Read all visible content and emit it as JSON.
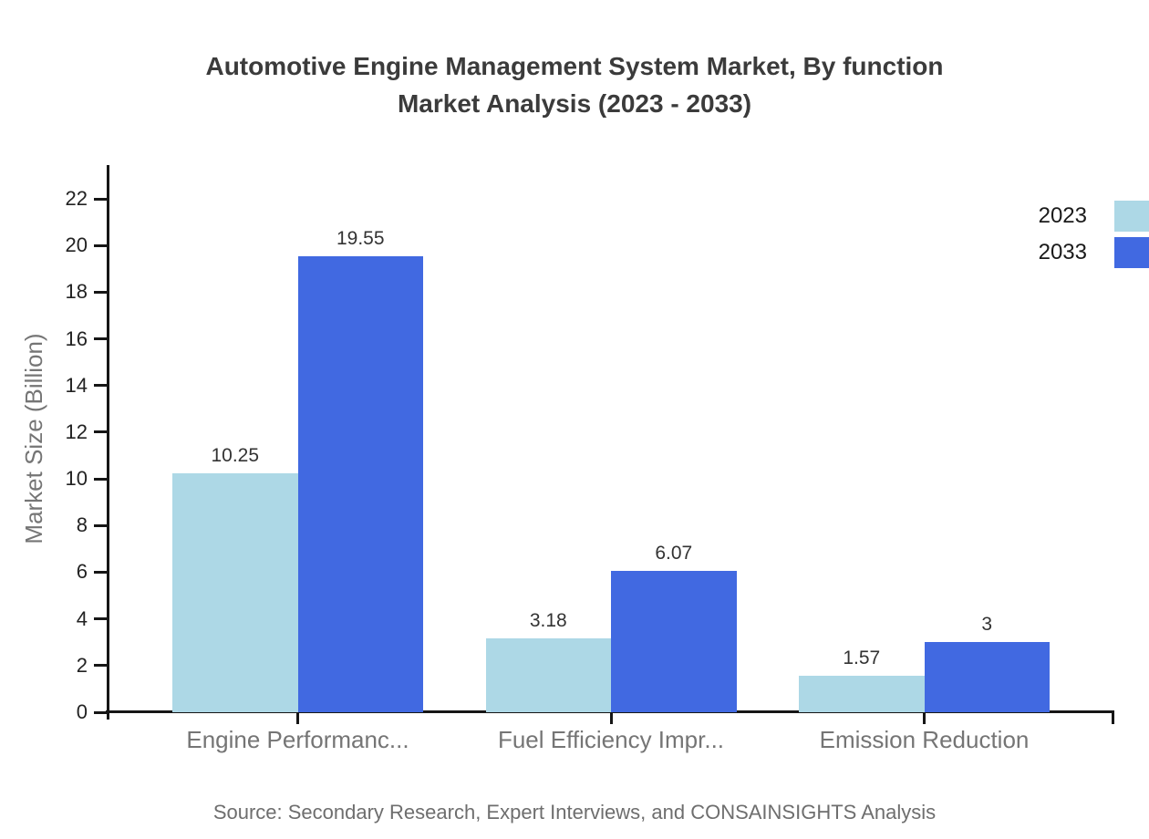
{
  "chart_data": {
    "type": "bar",
    "title_line1": "Automotive Engine Management System Market, By function",
    "title_line2": "Market Analysis (2023 - 2033)",
    "ylabel": "Market Size (Billion)",
    "ylim": [
      0,
      22
    ],
    "ytick_step": 2,
    "yticks": [
      0,
      2,
      4,
      6,
      8,
      10,
      12,
      14,
      16,
      18,
      20,
      22
    ],
    "grid": false,
    "legend_position": "top-right",
    "categories": [
      "Engine Performanc...",
      "Fuel Efficiency Impr...",
      "Emission Reduction"
    ],
    "series": [
      {
        "name": "2023",
        "color": "#add8e6",
        "values": [
          10.25,
          3.18,
          1.57
        ],
        "labels": [
          "10.25",
          "3.18",
          "1.57"
        ]
      },
      {
        "name": "2033",
        "color": "#4169e1",
        "values": [
          19.55,
          6.07,
          3
        ],
        "labels": [
          "19.55",
          "6.07",
          "3"
        ]
      }
    ],
    "source": "Source: Secondary Research, Expert Interviews, and CONSAINSIGHTS Analysis",
    "colors": {
      "axis": "#161616",
      "tick_label": "#222222",
      "category_label": "#757575",
      "title": "#3b3b3b",
      "value_label": "#333333",
      "legend_text": "#1a1a1a",
      "source_text": "#6e6e6e"
    }
  }
}
